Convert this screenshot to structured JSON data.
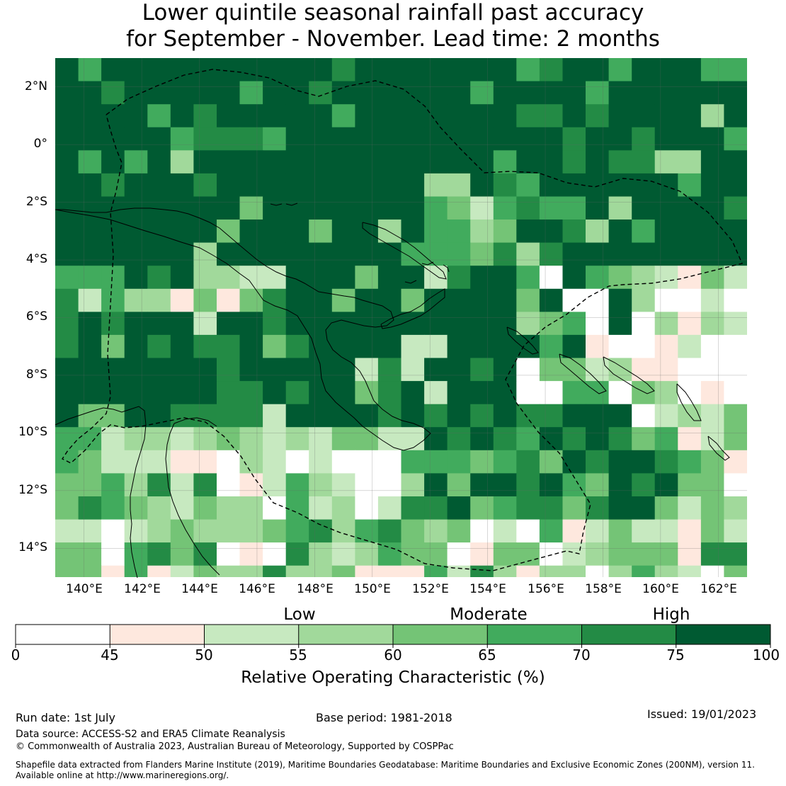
{
  "title": {
    "line1": "Lower quintile seasonal rainfall past accuracy",
    "line2": "for September - November. Lead time: 2 months"
  },
  "map": {
    "lat_labels": [
      "2°N",
      "0°",
      "2°S",
      "4°S",
      "6°S",
      "8°S",
      "10°S",
      "12°S",
      "14°S"
    ],
    "lon_labels": [
      "140°E",
      "142°E",
      "144°E",
      "146°E",
      "148°E",
      "150°E",
      "152°E",
      "154°E",
      "156°E",
      "158°E",
      "160°E",
      "162°E"
    ],
    "lat_range": [
      -15,
      3
    ],
    "lon_range": [
      139,
      163
    ],
    "cell_size_deg": 0.8,
    "boundary_style": "dashed",
    "coastline_color": "#000000"
  },
  "legend": {
    "categories": [
      "Low",
      "Moderate",
      "High"
    ],
    "ticks": [
      "0",
      "45",
      "50",
      "55",
      "60",
      "65",
      "70",
      "75",
      "100"
    ],
    "colors": [
      "#ffffff",
      "#fee8de",
      "#c7e9c0",
      "#a1d99b",
      "#74c476",
      "#41ab5d",
      "#238b45",
      "#005a32"
    ],
    "label": "Relative Operating Characteristic (%)"
  },
  "footer": {
    "run_date": "Run date: 1st July",
    "base_period": "Base period: 1981-2018",
    "issued": "Issued: 19/01/2023",
    "data_source": "Data source: ACCESS-S2 and ERA5 Climate Reanalysis",
    "copyright": "© Commonwealth of Australia 2023, Australian Bureau of Meteorology, Supported by COSPPac",
    "shapefile_line1": "Shapefile data extracted from Flanders Marine Institute (2019), Maritime Boundaries Geodatabase: Maritime Boundaries and Exclusive Economic Zones (200NM), version 11.",
    "shapefile_line2": "Available online at http://www.marineregions.org/."
  }
}
